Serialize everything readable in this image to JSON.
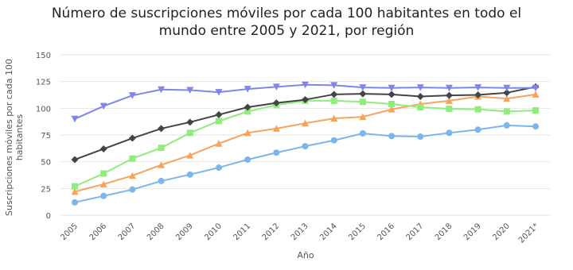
{
  "chart_data": {
    "type": "line",
    "title": "Número de suscripciones móviles por cada 100 habitantes en todo el mundo entre 2005 y 2021, por región",
    "ylabel": "Suscripciones móviles por cada 100 habitantes",
    "xlabel": "Año",
    "categories": [
      "2005",
      "2006",
      "2007",
      "2008",
      "2009",
      "2010",
      "2011",
      "2012",
      "2013",
      "2014",
      "2015",
      "2016",
      "2017",
      "2018",
      "2019",
      "2020",
      "2021*"
    ],
    "ylim": [
      0,
      150
    ],
    "yticks": [
      0,
      25,
      50,
      75,
      100,
      125,
      150
    ],
    "grid": true,
    "series": [
      {
        "color": "#7cb5ec",
        "marker": "circle",
        "values": [
          12,
          18,
          24,
          32,
          38,
          44.5,
          52,
          58.5,
          64.5,
          70,
          76.5,
          74,
          73.5,
          77,
          80,
          84,
          83
        ]
      },
      {
        "color": "#f7a35c",
        "marker": "triangle",
        "values": [
          22,
          29,
          37,
          47,
          56,
          67,
          77,
          81,
          86,
          90.5,
          92,
          99,
          104,
          107,
          111,
          109,
          113
        ]
      },
      {
        "color": "#90ed7d",
        "marker": "square",
        "values": [
          27,
          39,
          53,
          63,
          77,
          88,
          97,
          103,
          107,
          107,
          106,
          104,
          101,
          99.5,
          99,
          97,
          98
        ]
      },
      {
        "color": "#434348",
        "marker": "diamond",
        "values": [
          52,
          62,
          72,
          81,
          87,
          94,
          101,
          105,
          108,
          113,
          113.5,
          113,
          111,
          112,
          112.5,
          114.5,
          120
        ]
      },
      {
        "color": "#8085e9",
        "marker": "triangle-down",
        "values": [
          90,
          102,
          112,
          117.5,
          117,
          115,
          118,
          120,
          122,
          121.5,
          119.5,
          119,
          119.5,
          119,
          119.5,
          119,
          119
        ]
      }
    ]
  }
}
